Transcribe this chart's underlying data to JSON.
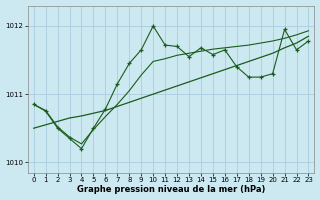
{
  "xlabel": "Graphe pression niveau de la mer (hPa)",
  "bg_color": "#cce8f0",
  "grid_color": "#aaccdd",
  "line_color": "#1a5c1a",
  "x": [
    0,
    1,
    2,
    3,
    4,
    5,
    6,
    7,
    8,
    9,
    10,
    11,
    12,
    13,
    14,
    15,
    16,
    17,
    18,
    19,
    20,
    21,
    22,
    23
  ],
  "y_jagged": [
    1010.85,
    1010.75,
    1010.5,
    1010.35,
    1010.2,
    1010.5,
    1010.78,
    1011.15,
    1011.45,
    1011.65,
    1012.0,
    1011.72,
    1011.7,
    1011.55,
    1011.68,
    1011.58,
    1011.65,
    1011.4,
    1011.25,
    1011.25,
    1011.3,
    1011.95,
    1011.65,
    1011.78
  ],
  "y_smooth": [
    1010.85,
    1010.76,
    1010.52,
    1010.37,
    1010.27,
    1010.48,
    1010.67,
    1010.85,
    1011.05,
    1011.28,
    1011.48,
    1011.52,
    1011.57,
    1011.6,
    1011.63,
    1011.66,
    1011.68,
    1011.7,
    1011.72,
    1011.75,
    1011.78,
    1011.82,
    1011.87,
    1011.93
  ],
  "y_trend": [
    1010.5,
    1010.55,
    1010.6,
    1010.65,
    1010.68,
    1010.72,
    1010.76,
    1010.82,
    1010.88,
    1010.94,
    1011.0,
    1011.06,
    1011.12,
    1011.18,
    1011.24,
    1011.3,
    1011.36,
    1011.42,
    1011.48,
    1011.54,
    1011.6,
    1011.68,
    1011.75,
    1011.85
  ],
  "ylim": [
    1009.85,
    1012.3
  ],
  "yticks": [
    1010,
    1011,
    1012
  ],
  "xlim": [
    -0.5,
    23.5
  ],
  "xticks": [
    0,
    1,
    2,
    3,
    4,
    5,
    6,
    7,
    8,
    9,
    10,
    11,
    12,
    13,
    14,
    15,
    16,
    17,
    18,
    19,
    20,
    21,
    22,
    23
  ]
}
